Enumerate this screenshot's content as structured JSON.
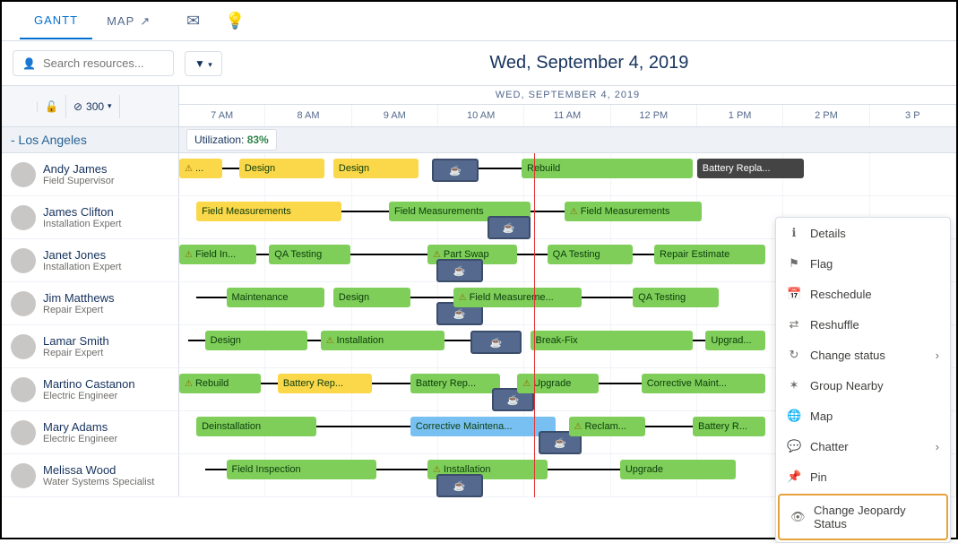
{
  "tabs": {
    "gantt": "GANTT",
    "map": "MAP"
  },
  "search": {
    "placeholder": "Search resources..."
  },
  "dateTitle": "Wed, September 4, 2019",
  "dayLabel": "WED, SEPTEMBER 4, 2019",
  "lockLimit": "300",
  "hours": [
    "7 AM",
    "8 AM",
    "9 AM",
    "10 AM",
    "11 AM",
    "12 PM",
    "1 PM",
    "2 PM",
    "3 P"
  ],
  "region": {
    "name": "- Los Angeles",
    "utilLabel": "Utilization:",
    "utilValue": "83%"
  },
  "hourWidthPx": 95.5,
  "startHour": 7,
  "nowHour": 11.15,
  "colors": {
    "green": "#7fce5a",
    "yellow": "#fbd74a",
    "blue": "#79c0f2",
    "dark": "#444444",
    "coffee": "#54698d"
  },
  "resources": [
    {
      "name": "Andy James",
      "role": "Field Supervisor",
      "tasks": [
        {
          "label": "...",
          "start": 7.0,
          "end": 7.5,
          "color": "yellow",
          "warn": true
        },
        {
          "label": "Design",
          "start": 7.7,
          "end": 8.7,
          "color": "yellow"
        },
        {
          "label": "Design",
          "start": 8.8,
          "end": 9.8,
          "color": "yellow"
        },
        {
          "label": "",
          "start": 9.95,
          "end": 10.5,
          "color": "coffee"
        },
        {
          "label": "Rebuild",
          "start": 11.0,
          "end": 13.0,
          "color": "green"
        },
        {
          "label": "Battery Repla...",
          "start": 13.05,
          "end": 14.3,
          "color": "dark",
          "textColor": "#fff"
        }
      ],
      "connectors": [
        {
          "from": 7.5,
          "to": 7.7
        },
        {
          "from": 10.5,
          "to": 11.0
        }
      ]
    },
    {
      "name": "James Clifton",
      "role": "Installation Expert",
      "tasks": [
        {
          "label": "Field Measurements",
          "start": 7.2,
          "end": 8.9,
          "color": "yellow"
        },
        {
          "label": "Field Measurements",
          "start": 9.45,
          "end": 11.1,
          "color": "green"
        },
        {
          "label": "",
          "start": 10.6,
          "end": 11.1,
          "color": "coffee",
          "row2": true
        },
        {
          "label": "Field Measurements",
          "start": 11.5,
          "end": 13.1,
          "color": "green",
          "warn": true
        }
      ],
      "connectors": [
        {
          "from": 8.9,
          "to": 9.45
        },
        {
          "from": 11.1,
          "to": 11.5
        }
      ]
    },
    {
      "name": "Janet Jones",
      "role": "Installation Expert",
      "tasks": [
        {
          "label": "Field In...",
          "start": 7.0,
          "end": 7.9,
          "color": "green",
          "warn": true
        },
        {
          "label": "QA Testing",
          "start": 8.05,
          "end": 9.0,
          "color": "green"
        },
        {
          "label": "Part Swap",
          "start": 9.9,
          "end": 10.95,
          "color": "green",
          "warn": true
        },
        {
          "label": "",
          "start": 10.0,
          "end": 10.55,
          "color": "coffee",
          "row2": true
        },
        {
          "label": "QA Testing",
          "start": 11.3,
          "end": 12.3,
          "color": "green"
        },
        {
          "label": "Repair Estimate",
          "start": 12.55,
          "end": 13.85,
          "color": "green"
        }
      ],
      "connectors": [
        {
          "from": 7.9,
          "to": 8.05
        },
        {
          "from": 9.0,
          "to": 9.9
        },
        {
          "from": 10.95,
          "to": 11.3
        },
        {
          "from": 12.3,
          "to": 12.55
        }
      ]
    },
    {
      "name": "Jim Matthews",
      "role": "Repair Expert",
      "tasks": [
        {
          "label": "Maintenance",
          "start": 7.55,
          "end": 8.7,
          "color": "green"
        },
        {
          "label": "Design",
          "start": 8.8,
          "end": 9.7,
          "color": "green"
        },
        {
          "label": "",
          "start": 10.0,
          "end": 10.55,
          "color": "coffee",
          "row2": true
        },
        {
          "label": "Field Measureme...",
          "start": 10.2,
          "end": 11.7,
          "color": "green",
          "warn": true
        },
        {
          "label": "QA Testing",
          "start": 12.3,
          "end": 13.3,
          "color": "green"
        }
      ],
      "connectors": [
        {
          "from": 7.2,
          "to": 7.55
        },
        {
          "from": 9.7,
          "to": 10.2
        },
        {
          "from": 11.7,
          "to": 12.3
        }
      ]
    },
    {
      "name": "Lamar Smith",
      "role": "Repair Expert",
      "tasks": [
        {
          "label": "Design",
          "start": 7.3,
          "end": 8.5,
          "color": "green"
        },
        {
          "label": "Installation",
          "start": 8.65,
          "end": 10.1,
          "color": "green",
          "warn": true
        },
        {
          "label": "",
          "start": 10.4,
          "end": 11.0,
          "color": "coffee"
        },
        {
          "label": "Break-Fix",
          "start": 11.1,
          "end": 13.0,
          "color": "green"
        },
        {
          "label": "Upgrad...",
          "start": 13.15,
          "end": 13.85,
          "color": "green"
        }
      ],
      "connectors": [
        {
          "from": 7.1,
          "to": 7.3
        },
        {
          "from": 8.5,
          "to": 8.65
        },
        {
          "from": 10.1,
          "to": 10.4
        },
        {
          "from": 13.0,
          "to": 13.15
        }
      ]
    },
    {
      "name": "Martino Castanon",
      "role": "Electric Engineer",
      "tasks": [
        {
          "label": "Rebuild",
          "start": 7.0,
          "end": 7.95,
          "color": "green",
          "warn": true
        },
        {
          "label": "Battery Rep...",
          "start": 8.15,
          "end": 9.25,
          "color": "yellow"
        },
        {
          "label": "Battery Rep...",
          "start": 9.7,
          "end": 10.75,
          "color": "green"
        },
        {
          "label": "",
          "start": 10.65,
          "end": 11.15,
          "color": "coffee",
          "row2": true
        },
        {
          "label": "Upgrade",
          "start": 10.95,
          "end": 11.9,
          "color": "green",
          "warn": true
        },
        {
          "label": "Corrective Maint...",
          "start": 12.4,
          "end": 13.85,
          "color": "green"
        }
      ],
      "connectors": [
        {
          "from": 7.95,
          "to": 8.15
        },
        {
          "from": 9.25,
          "to": 9.7
        },
        {
          "from": 11.9,
          "to": 12.4
        }
      ]
    },
    {
      "name": "Mary Adams",
      "role": "Electric Engineer",
      "tasks": [
        {
          "label": "Deinstallation",
          "start": 7.2,
          "end": 8.6,
          "color": "green"
        },
        {
          "label": "Corrective Maintena...",
          "start": 9.7,
          "end": 11.4,
          "color": "blue"
        },
        {
          "label": "",
          "start": 11.2,
          "end": 11.7,
          "color": "coffee",
          "row2": true
        },
        {
          "label": "Reclam...",
          "start": 11.55,
          "end": 12.45,
          "color": "green",
          "warn": true
        },
        {
          "label": "Battery R...",
          "start": 13.0,
          "end": 13.85,
          "color": "green"
        }
      ],
      "connectors": [
        {
          "from": 8.6,
          "to": 9.7
        },
        {
          "from": 12.45,
          "to": 13.0
        }
      ]
    },
    {
      "name": "Melissa Wood",
      "role": "Water Systems Specialist",
      "tasks": [
        {
          "label": "Field Inspection",
          "start": 7.55,
          "end": 9.3,
          "color": "green"
        },
        {
          "label": "Installation",
          "start": 9.9,
          "end": 11.3,
          "color": "green",
          "warn": true
        },
        {
          "label": "",
          "start": 10.0,
          "end": 10.55,
          "color": "coffee",
          "row2": true
        },
        {
          "label": "Upgrade",
          "start": 12.15,
          "end": 13.5,
          "color": "green"
        }
      ],
      "connectors": [
        {
          "from": 7.3,
          "to": 7.55
        },
        {
          "from": 9.3,
          "to": 9.9
        },
        {
          "from": 11.3,
          "to": 12.15
        }
      ]
    }
  ],
  "contextMenu": [
    {
      "icon": "ℹ",
      "label": "Details"
    },
    {
      "icon": "⚑",
      "label": "Flag"
    },
    {
      "icon": "📅",
      "label": "Reschedule"
    },
    {
      "icon": "⇄",
      "label": "Reshuffle"
    },
    {
      "icon": "↻",
      "label": "Change status",
      "caret": true
    },
    {
      "icon": "✶",
      "label": "Group Nearby"
    },
    {
      "icon": "🌐",
      "label": "Map"
    },
    {
      "icon": "💬",
      "label": "Chatter",
      "caret": true
    },
    {
      "icon": "📌",
      "label": "Pin"
    },
    {
      "icon": "👁",
      "label": "Change Jeopardy Status",
      "highlight": true
    }
  ]
}
